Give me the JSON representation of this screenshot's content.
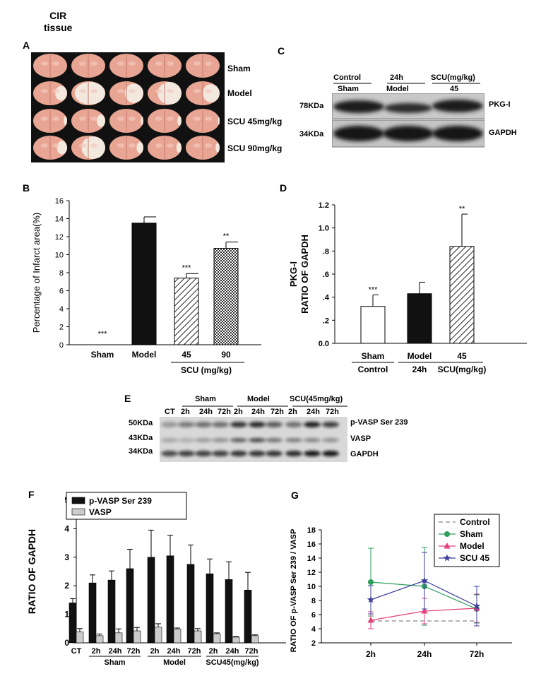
{
  "header": {
    "line1": "CIR",
    "line2": "tissue"
  },
  "panels": {
    "A": "A",
    "B": "B",
    "C": "C",
    "D": "D",
    "E": "E",
    "F": "F",
    "G": "G"
  },
  "panel_a": {
    "rows": [
      "Sham",
      "Model",
      "SCU 45mg/kg",
      "SCU 90mg/kg"
    ],
    "slice_color": "#e9a593",
    "lesion_color": "#f3ebe2"
  },
  "panel_c": {
    "group_labels": [
      {
        "top": "Control",
        "bottom": "Sham"
      },
      {
        "top": "24h",
        "bottom": "Model"
      },
      {
        "top": "SCU(mg/kg)",
        "bottom": "45"
      }
    ],
    "bands": [
      {
        "kda": "78KDa",
        "protein": "PKG-I"
      },
      {
        "kda": "34KDa",
        "protein": "GAPDH"
      }
    ]
  },
  "panel_e": {
    "groups": [
      "Sham",
      "Model",
      "SCU(45mg/kg)"
    ],
    "lanes": [
      "CT",
      "2h",
      "24h",
      "72h",
      "2h",
      "24h",
      "72h",
      "2h",
      "24h",
      "72h"
    ],
    "bands": [
      {
        "kda": "50KDa",
        "protein": "p-VASP Ser 239"
      },
      {
        "kda": "43KDa",
        "protein": "VASP"
      },
      {
        "kda": "34KDa",
        "protein": "GAPDH"
      }
    ]
  },
  "chart_data": [
    {
      "id": "B",
      "type": "bar",
      "ylabel": "Percentage of Infarct area(%)",
      "ylim": [
        0,
        16
      ],
      "yticks": [
        "0",
        "2",
        "4",
        "6",
        "8",
        "10",
        "12",
        "14",
        "16"
      ],
      "categories": [
        "Sham",
        "Model",
        "45",
        "90"
      ],
      "values": [
        0,
        13.5,
        7.4,
        10.7
      ],
      "errors": [
        0,
        0.7,
        0.5,
        0.7
      ],
      "annotations": [
        "***",
        "",
        "***",
        "**"
      ],
      "patterns": [
        "none",
        "solid",
        "diag",
        "dots"
      ],
      "group_label": "SCU (mg/kg)"
    },
    {
      "id": "D",
      "type": "bar",
      "ylabel_line1": "PKG-I",
      "ylabel_line2": "RATIO OF GAPDH",
      "ylim": [
        0,
        1.2
      ],
      "yticks": [
        "0.0",
        ".2",
        ".4",
        ".6",
        ".8",
        "1.0",
        "1.2"
      ],
      "categories": [
        {
          "top": "Sham",
          "bottom": "Control"
        },
        {
          "top": "Model",
          "bottom": "24h"
        },
        {
          "top": "45",
          "bottom": "SCU(mg/kg)"
        }
      ],
      "values": [
        0.32,
        0.43,
        0.84
      ],
      "errors": [
        0.1,
        0.1,
        0.28
      ],
      "annotations": [
        "***",
        "",
        "**"
      ],
      "patterns": [
        "white",
        "solid",
        "diag"
      ]
    },
    {
      "id": "F",
      "type": "bar",
      "ylabel": "RATIO OF GAPDH",
      "ylim": [
        0,
        5
      ],
      "yticks": [
        "0",
        "1",
        "2",
        "3",
        "4",
        "5"
      ],
      "categories": [
        "CT",
        "2h",
        "24h",
        "72h",
        "2h",
        "24h",
        "72h",
        "2h",
        "24h",
        "72h"
      ],
      "groups": [
        {
          "name": "Sham",
          "from": 1,
          "to": 3
        },
        {
          "name": "Model",
          "from": 4,
          "to": 6
        },
        {
          "name": "SCU45(mg/kg)",
          "from": 7,
          "to": 9
        }
      ],
      "legend": "top-left",
      "series": [
        {
          "name": "p-VASP Ser 239",
          "color": "#111111",
          "values": [
            1.4,
            2.1,
            2.2,
            2.6,
            3.0,
            3.05,
            2.75,
            2.42,
            2.22,
            1.85
          ],
          "errors": [
            0.15,
            0.28,
            0.32,
            0.68,
            0.95,
            0.72,
            0.68,
            0.52,
            0.62,
            0.62
          ]
        },
        {
          "name": "VASP",
          "color": "#cccccc",
          "values": [
            0.38,
            0.25,
            0.35,
            0.42,
            0.55,
            0.48,
            0.42,
            0.32,
            0.2,
            0.25
          ],
          "errors": [
            0.12,
            0.06,
            0.14,
            0.12,
            0.12,
            0.04,
            0.08,
            0.03,
            0.02,
            0.03
          ]
        }
      ]
    },
    {
      "id": "G",
      "type": "line",
      "ylabel": "RATIO OF p-VASP Ser 239 / VASP",
      "ylim": [
        2,
        18
      ],
      "yticks": [
        "2",
        "4",
        "6",
        "8",
        "10",
        "12",
        "14",
        "16",
        "18"
      ],
      "categories": [
        "2h",
        "24h",
        "72h"
      ],
      "legend": "top-right",
      "series": [
        {
          "name": "Control",
          "color": "#888888",
          "dash": true,
          "marker": "none",
          "values": [
            5.1,
            5.1,
            5.1
          ],
          "errors": [
            0,
            0,
            0
          ]
        },
        {
          "name": "Sham",
          "color": "#2e9e5b",
          "marker": "circle",
          "values": [
            10.6,
            10.0,
            6.8
          ],
          "errors": [
            4.8,
            5.5,
            2.0
          ]
        },
        {
          "name": "Model",
          "color": "#e0407c",
          "marker": "triangle",
          "values": [
            5.2,
            6.5,
            6.9
          ],
          "errors": [
            1.2,
            1.8,
            2.0
          ]
        },
        {
          "name": "SCU 45",
          "color": "#3d3d9e",
          "marker": "star",
          "values": [
            8.1,
            10.8,
            7.2
          ],
          "errors": [
            2.0,
            4.0,
            2.8
          ]
        }
      ]
    }
  ]
}
